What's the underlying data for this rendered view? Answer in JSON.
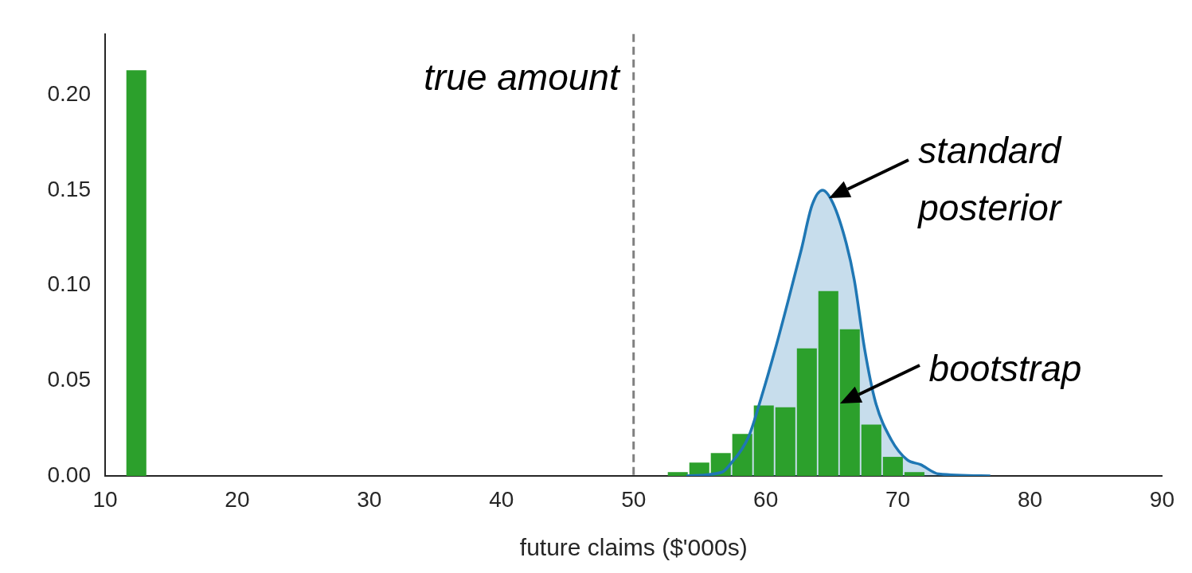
{
  "chart_data": {
    "type": "histogram",
    "xlabel": "future claims ($'000s)",
    "xlim": [
      10,
      90
    ],
    "xticks": [
      10,
      20,
      30,
      40,
      50,
      60,
      70,
      80,
      90
    ],
    "ylim": [
      0,
      0.232
    ],
    "yticks": [
      {
        "value": 0,
        "label": "0.00"
      },
      0.05,
      {
        "value": 0.1,
        "label": "0.10"
      },
      0.15,
      {
        "value": 0.2,
        "label": "0.20"
      }
    ],
    "grid": false,
    "legend": false,
    "series": [
      {
        "type": "histogram",
        "color": "#2ca02c",
        "bins": [
          11.55,
          13.18,
          52.53,
          54.16,
          55.79,
          57.41,
          59.04,
          60.67,
          62.3,
          63.93,
          65.55,
          67.18,
          68.81,
          70.44,
          72.07
        ],
        "values": [
          0.213,
          0,
          0.002,
          0.007,
          0.012,
          0.022,
          0.037,
          0.036,
          0.067,
          0.097,
          0.077,
          0.027,
          0.01,
          0.002
        ]
      },
      {
        "type": "area",
        "color": "#1f77b4",
        "x": [
          54.0,
          56.7,
          57.3,
          58.7,
          59.7,
          60.7,
          61.7,
          62.7,
          63.5,
          64.3,
          65.1,
          66.1,
          66.7,
          67.5,
          68.3,
          69.5,
          70.7,
          71.7,
          73.1,
          77.0
        ],
        "values": [
          0.0,
          0.002,
          0.006,
          0.0205,
          0.042,
          0.066,
          0.092,
          0.119,
          0.142,
          0.15,
          0.143,
          0.122,
          0.103,
          0.066,
          0.039,
          0.019,
          0.0085,
          0.006,
          0.001,
          0.0
        ]
      }
    ],
    "ref_lines": [
      {
        "axis": "x",
        "value": 50,
        "label": "true amount",
        "color": "#808080",
        "line_style": "dashed"
      }
    ],
    "annotations": [
      {
        "text": "standard\nposterior",
        "x": 64.8,
        "y": 0.146
      },
      {
        "text": "bootstrap",
        "x": 65.6,
        "y": 0.038
      }
    ]
  }
}
